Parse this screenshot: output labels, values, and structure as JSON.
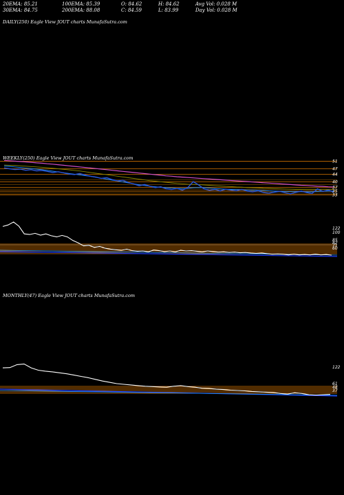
{
  "header": {
    "row1": [
      "20EMA: 85.21",
      "100EMA: 85.39",
      "O: 84.62",
      "H: 84.62",
      "Avg Vol: 0.028  M"
    ],
    "row2": [
      "30EMA: 84.75",
      "200EMA: 88.08",
      "C: 84.59",
      "L: 83.99",
      "Day Vol: 0.028 M"
    ]
  },
  "panels": {
    "daily": "DAILY(250) Eagle  View  JOUT charts MunafaSutra.com",
    "weekly": "WEEKLY(250) Eagle  View  JOUT charts MunafaSutra.com",
    "monthly": "MONTHLY(47) Eagle  View  JOUT charts MunafaSutra.com"
  },
  "chart_data": [
    {
      "type": "line",
      "name": "weekly",
      "price_ticks": [
        "51",
        "47",
        "44",
        "40",
        "37",
        "35",
        "33"
      ],
      "osc_ticks": [
        "122",
        "100",
        "85",
        "82",
        "71",
        "60"
      ],
      "price": [
        47.5,
        47.0,
        46.6,
        46.8,
        46.2,
        46.5,
        45.9,
        46.1,
        45.6,
        45.0,
        45.4,
        44.8,
        44.2,
        43.9,
        44.5,
        43.6,
        43.0,
        42.5,
        41.8,
        42.2,
        41.2,
        40.5,
        40.8,
        39.6,
        38.8,
        37.9,
        38.5,
        37.6,
        36.9,
        37.3,
        36.2,
        35.8,
        36.4,
        35.5,
        36.9,
        40.1,
        38.3,
        36.2,
        35.4,
        35.9,
        35.1,
        36.0,
        35.5,
        35.2,
        35.9,
        35.0,
        34.6,
        35.2,
        34.2,
        33.8,
        34.4,
        34.9,
        34.1,
        33.5,
        34.3,
        35.0,
        34.2,
        33.7,
        36.2,
        34.8,
        35.6,
        34.4
      ],
      "ema_fast": [
        48.5,
        48.3,
        48.0,
        47.7,
        47.4,
        47.1,
        46.8,
        46.5,
        46.1,
        45.7,
        45.3,
        44.9,
        44.5,
        44.1,
        43.7,
        43.3,
        42.9,
        42.4,
        41.9,
        41.4,
        40.9,
        40.4,
        39.9,
        39.4,
        38.9,
        38.4,
        38.0,
        37.6,
        37.3,
        37.0,
        36.8,
        36.6,
        36.5,
        36.4,
        36.5,
        36.8,
        36.9,
        36.8,
        36.6,
        36.4,
        36.2,
        36.0,
        35.9,
        35.8,
        35.7,
        35.6,
        35.5,
        35.4,
        35.3,
        35.1,
        35.0,
        34.9,
        34.8,
        34.7,
        34.7,
        34.7,
        34.6,
        34.6,
        34.8,
        34.9,
        35.0,
        35.0
      ],
      "ema_slow": [
        49.0,
        48.9,
        48.8,
        48.6,
        48.4,
        48.2,
        48.0,
        47.8,
        47.6,
        47.3,
        47.0,
        46.7,
        46.4,
        46.1,
        45.8,
        45.4,
        45.0,
        44.6,
        44.2,
        43.8,
        43.4,
        43.0,
        42.6,
        42.2,
        41.8,
        41.4,
        41.0,
        40.6,
        40.3,
        40.0,
        39.7,
        39.4,
        39.1,
        38.9,
        38.7,
        38.6,
        38.5,
        38.3,
        38.1,
        37.9,
        37.7,
        37.5,
        37.4,
        37.2,
        37.1,
        36.9,
        36.8,
        36.7,
        36.5,
        36.4,
        36.3,
        36.2,
        36.1,
        36.0,
        35.9,
        35.9,
        35.8,
        35.8,
        35.8,
        35.8,
        35.8,
        35.8
      ],
      "ema_long": [
        51.5,
        51.3,
        51.1,
        50.9,
        50.7,
        50.5,
        50.2,
        50.0,
        49.7,
        49.5,
        49.2,
        48.9,
        48.6,
        48.3,
        48.0,
        47.7,
        47.4,
        47.1,
        46.8,
        46.5,
        46.2,
        45.9,
        45.6,
        45.3,
        45.0,
        44.7,
        44.4,
        44.1,
        43.8,
        43.5,
        43.2,
        43.0,
        42.7,
        42.5,
        42.3,
        42.1,
        41.9,
        41.7,
        41.5,
        41.3,
        41.1,
        40.9,
        40.7,
        40.5,
        40.3,
        40.1,
        39.9,
        39.7,
        39.5,
        39.3,
        39.1,
        38.9,
        38.7,
        38.5,
        38.3,
        38.1,
        38.0,
        37.8,
        37.6,
        37.5,
        37.3,
        37.2
      ],
      "oscillator": [
        175,
        180,
        190,
        176,
        150,
        148,
        152,
        146,
        150,
        144,
        140,
        145,
        140,
        128,
        120,
        110,
        112,
        105,
        108,
        102,
        99,
        97,
        95,
        99,
        94,
        92,
        93,
        90,
        96,
        94,
        91,
        93,
        90,
        95,
        93,
        94,
        92,
        90,
        93,
        91,
        89,
        90,
        88,
        89,
        87,
        88,
        86,
        85,
        86,
        84,
        82,
        83,
        82,
        80,
        82,
        80,
        81,
        80,
        82,
        80,
        81,
        79
      ],
      "colors": {
        "price": "#2b55d9",
        "ema_fast": "#1e90ff",
        "ema_slow": "#8b8b00",
        "ema_long": "#d04fc9",
        "oscillator": "#ffffff",
        "bands": "#ff8c00"
      }
    },
    {
      "type": "line",
      "name": "monthly",
      "osc_ticks": [
        "122",
        "61",
        "48",
        "37"
      ],
      "oscillator": [
        120,
        121,
        130,
        132,
        120,
        113,
        110,
        108,
        105,
        102,
        98,
        94,
        90,
        85,
        80,
        76,
        72,
        70,
        68,
        66,
        64,
        63,
        62,
        61,
        64,
        66,
        63,
        61,
        58,
        57,
        55,
        54,
        52,
        51,
        50,
        48,
        47,
        46,
        45,
        42,
        40,
        44,
        42,
        38,
        37,
        38,
        39
      ],
      "colors": {
        "price": "#2b55d9",
        "ema_fast": "#1e90ff",
        "oscillator": "#ffffff",
        "bands": "#ff8c00"
      }
    }
  ]
}
